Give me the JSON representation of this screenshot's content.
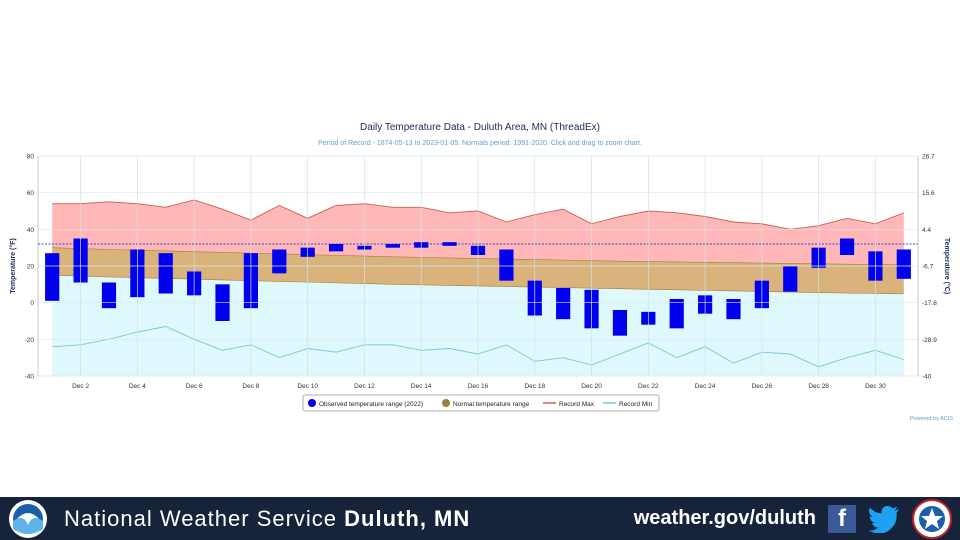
{
  "chart_data": {
    "type": "bar",
    "title": "Daily Temperature Data - Duluth Area, MN (ThreadEx)",
    "subtitle": "Period of Record - 1874-05-13 to 2023-01-05. Normals period: 1991-2020. Click and drag to zoom chart.",
    "ylabel_left": "Temperature (°F)",
    "ylabel_right": "Temperature (°C)",
    "ylim": [
      -40,
      80
    ],
    "yticks_left": [
      "80",
      "60",
      "40",
      "20",
      "0",
      "-20",
      "-40"
    ],
    "yticks_right": [
      "26.7",
      "15.6",
      "4.4",
      "-6.7",
      "-17.8",
      "-28.9",
      "-40"
    ],
    "xlim": [
      1,
      31
    ],
    "x_tick_labels": [
      "Dec 2",
      "Dec 4",
      "Dec 6",
      "Dec 8",
      "Dec 10",
      "Dec 12",
      "Dec 14",
      "Dec 16",
      "Dec 18",
      "Dec 20",
      "Dec 22",
      "Dec 24",
      "Dec 26",
      "Dec 28",
      "Dec 30"
    ],
    "days": [
      1,
      2,
      3,
      4,
      5,
      6,
      7,
      8,
      9,
      10,
      11,
      12,
      13,
      14,
      15,
      16,
      17,
      18,
      19,
      20,
      21,
      22,
      23,
      24,
      25,
      26,
      27,
      28,
      29,
      30,
      31
    ],
    "observed_high": [
      27,
      35,
      11,
      29,
      27,
      17,
      10,
      27,
      29,
      30,
      32,
      31,
      32,
      33,
      33,
      31,
      29,
      12,
      8,
      7,
      -4,
      -5,
      2,
      4,
      2,
      12,
      20,
      30,
      35,
      28,
      29
    ],
    "observed_low": [
      1,
      11,
      -3,
      3,
      5,
      4,
      -10,
      -3,
      16,
      25,
      28,
      29,
      30,
      30,
      31,
      26,
      12,
      -7,
      -9,
      -14,
      -18,
      -12,
      -14,
      -6,
      -9,
      -3,
      6,
      19,
      26,
      12,
      13
    ],
    "normal_high": [
      30,
      29.5,
      29,
      28.6,
      28.2,
      27.8,
      27.4,
      27,
      26.6,
      26.2,
      25.8,
      25.4,
      25,
      24.7,
      24.4,
      24.1,
      23.8,
      23.5,
      23.2,
      22.9,
      22.6,
      22.4,
      22.2,
      22,
      21.8,
      21.6,
      21.4,
      21.2,
      21,
      20.8,
      20.6
    ],
    "normal_low": [
      15,
      14.5,
      14,
      13.6,
      13.2,
      12.8,
      12.4,
      12,
      11.6,
      11.2,
      10.8,
      10.4,
      10,
      9.7,
      9.4,
      9.1,
      8.8,
      8.5,
      8.2,
      7.9,
      7.6,
      7.3,
      7,
      6.7,
      6.4,
      6.1,
      5.8,
      5.5,
      5.2,
      5,
      4.8
    ],
    "record_max": [
      54,
      54,
      55,
      54,
      52,
      56,
      51,
      45,
      53,
      46,
      53,
      54,
      52,
      52,
      49,
      50,
      44,
      48,
      51,
      43,
      47,
      50,
      49,
      47,
      44,
      43,
      40,
      42,
      46,
      43,
      49
    ],
    "record_min": [
      -24,
      -23,
      -20,
      -16,
      -13,
      -20,
      -26,
      -23,
      -30,
      -25,
      -27,
      -23,
      -23,
      -26,
      -25,
      -28,
      -23,
      -32,
      -30,
      -34,
      -28,
      -22,
      -30,
      -24,
      -33,
      -27,
      -28,
      -35,
      -30,
      -26,
      -31
    ],
    "reference_line": 32,
    "legend": [
      "Observed temperature range (2022)",
      "Normal temperature range",
      "Record Max",
      "Record Min"
    ],
    "credit": "Powered by ACIS",
    "grid": true,
    "legend_position": "bottom-center"
  },
  "colors": {
    "observed": "#0000ee",
    "normal_fill": "#d9b27c",
    "normal_line": "#9e7d3a",
    "record_max_fill": "#ffb7b7",
    "record_max_line": "#c8604f",
    "record_min_fill": "#dff8fb",
    "record_min_line": "#7ec3dc",
    "reference_line": "#3e42c8",
    "title": "#1c2a5e",
    "subtitle": "#5a9fd0",
    "footer_bg": "#15243b"
  },
  "footer": {
    "title_prefix": "National Weather Service",
    "title_place": "Duluth, MN",
    "link": "weather.gov/duluth",
    "facebook_icon": "facebook-icon",
    "twitter_icon": "twitter-icon",
    "noaa_logo": "noaa-logo",
    "nws_logo": "nws-logo"
  }
}
